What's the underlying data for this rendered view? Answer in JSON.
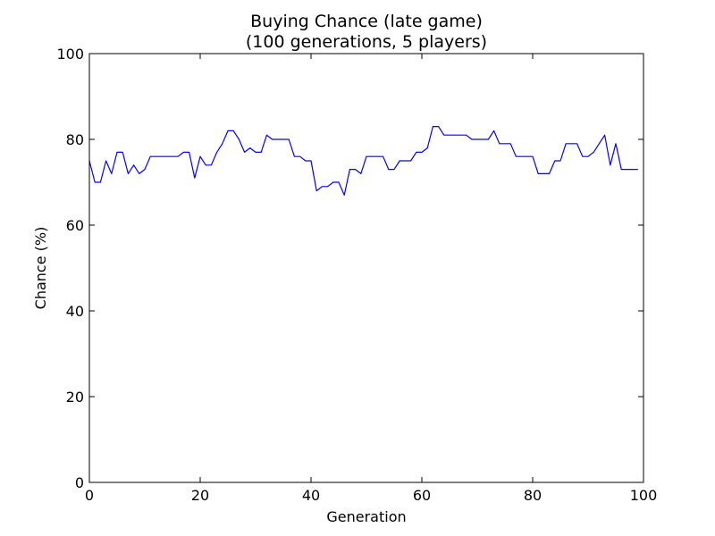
{
  "chart_data": {
    "type": "line",
    "title_line1": "Buying Chance (late game)",
    "title_line2": "(100 generations, 5 players)",
    "xlabel": "Generation",
    "ylabel": "Chance (%)",
    "xlim": [
      0,
      100
    ],
    "ylim": [
      0,
      100
    ],
    "x_ticks": [
      0,
      20,
      40,
      60,
      80,
      100
    ],
    "y_ticks": [
      0,
      20,
      40,
      60,
      80,
      100
    ],
    "x_tick_labels": [
      "0",
      "20",
      "40",
      "60",
      "80",
      "100"
    ],
    "y_tick_labels": [
      "0",
      "20",
      "40",
      "60",
      "80",
      "100"
    ],
    "grid": false,
    "line_color": "#0000ff",
    "series": [
      {
        "x": [
          0,
          1,
          2,
          3,
          4,
          5,
          6,
          7,
          8,
          9,
          10,
          11,
          12,
          13,
          14,
          15,
          16,
          17,
          18,
          19,
          20,
          21,
          22,
          23,
          24,
          25,
          26,
          27,
          28,
          29,
          30,
          31,
          32,
          33,
          34,
          35,
          36,
          37,
          38,
          39,
          40,
          41,
          42,
          43,
          44,
          45,
          46,
          47,
          48,
          49,
          50,
          51,
          52,
          53,
          54,
          55,
          56,
          57,
          58,
          59,
          60,
          61,
          62,
          63,
          64,
          65,
          66,
          67,
          68,
          69,
          70,
          71,
          72,
          73,
          74,
          75,
          76,
          77,
          78,
          79,
          80,
          81,
          82,
          83,
          84,
          85,
          86,
          87,
          88,
          89,
          90,
          91,
          92,
          93,
          94,
          95,
          96,
          97,
          98,
          99
        ],
        "values": [
          75,
          70,
          70,
          75,
          72,
          77,
          77,
          72,
          74,
          72,
          73,
          76,
          76,
          76,
          76,
          76,
          76,
          77,
          77,
          71,
          76,
          74,
          74,
          77,
          79,
          82,
          82,
          80,
          77,
          78,
          77,
          77,
          81,
          80,
          80,
          80,
          80,
          76,
          76,
          75,
          75,
          68,
          69,
          69,
          70,
          70,
          67,
          73,
          73,
          72,
          76,
          76,
          76,
          76,
          73,
          73,
          75,
          75,
          75,
          77,
          77,
          78,
          83,
          83,
          81,
          81,
          81,
          81,
          81,
          80,
          80,
          80,
          80,
          82,
          79,
          79,
          79,
          76,
          76,
          76,
          76,
          72,
          72,
          72,
          75,
          75,
          79,
          79,
          79,
          76,
          76,
          77,
          79,
          81,
          74,
          79,
          73,
          73,
          73,
          73
        ]
      }
    ]
  }
}
